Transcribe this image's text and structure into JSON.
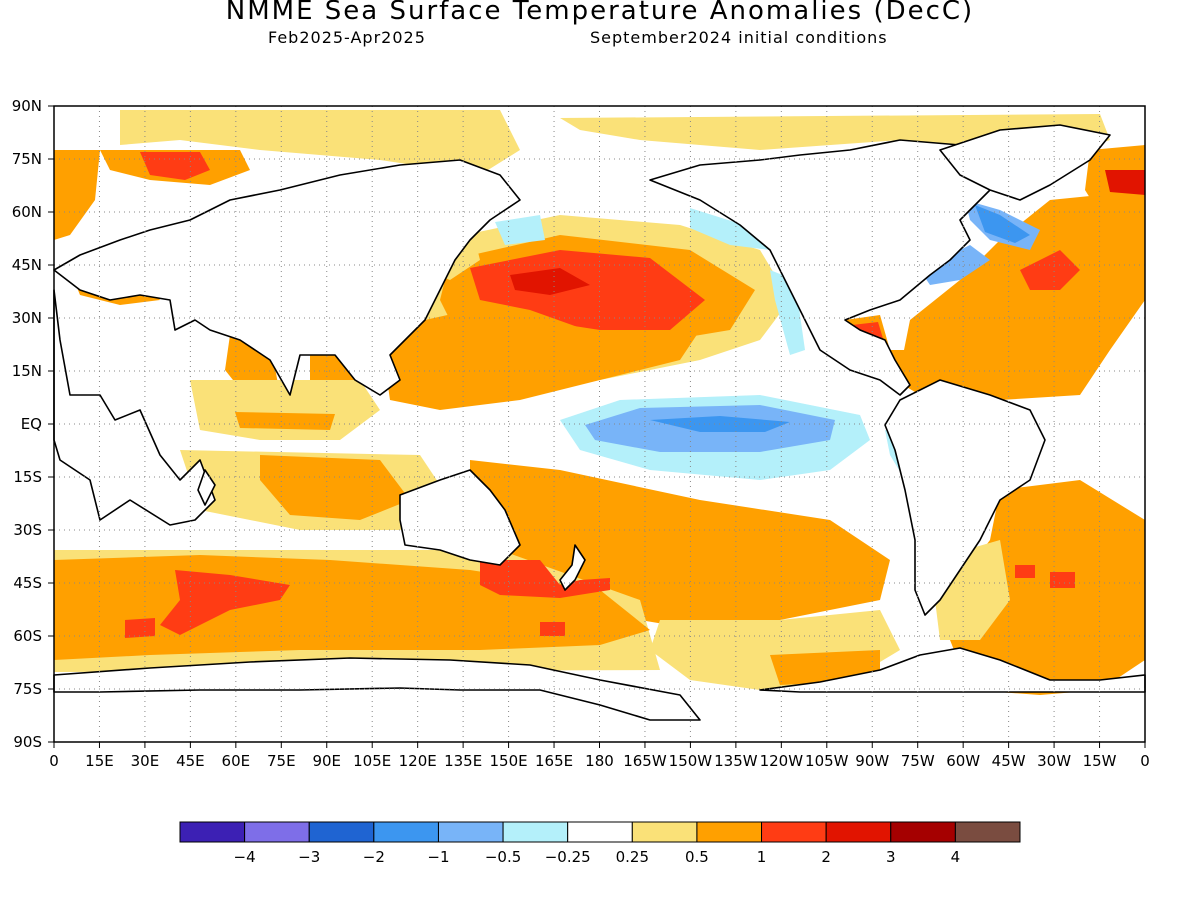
{
  "title": "NMME Sea Surface Temperature Anomalies (DecC)",
  "subtitle_left": "Feb2025-Apr2025",
  "subtitle_right": "September2024 initial conditions",
  "map": {
    "lat_labels": [
      "90N",
      "75N",
      "60N",
      "45N",
      "30N",
      "15N",
      "EQ",
      "15S",
      "30S",
      "45S",
      "60S",
      "75S",
      "90S"
    ],
    "lon_labels": [
      "0",
      "15E",
      "30E",
      "45E",
      "60E",
      "75E",
      "90E",
      "105E",
      "120E",
      "135E",
      "150E",
      "165E",
      "180",
      "165W",
      "150W",
      "135W",
      "120W",
      "105W",
      "90W",
      "75W",
      "60W",
      "45W",
      "30W",
      "15W",
      "0"
    ],
    "grid": "dotted"
  },
  "colorbar": {
    "colors": [
      "#3c20b4",
      "#7e6ee8",
      "#1f64d2",
      "#3c96f0",
      "#78b4f8",
      "#b4f0fa",
      "#ffffff",
      "#fae178",
      "#ffa000",
      "#ff3c14",
      "#e11400",
      "#a50000",
      "#7a4c40"
    ],
    "labels": [
      "-4",
      "-3",
      "-2",
      "-1",
      "-0.5",
      "-0.25",
      "0.25",
      "0.5",
      "1",
      "2",
      "3",
      "4"
    ]
  },
  "legend_categories": {
    "pos_05": "#ffa000",
    "pos_025": "#fae178",
    "pos_1": "#ff3c14",
    "pos_2": "#e11400",
    "neg_025": "#b4f0fa",
    "neg_05": "#78b4f8",
    "neg_1": "#3c96f0",
    "land": "#ffffff"
  }
}
